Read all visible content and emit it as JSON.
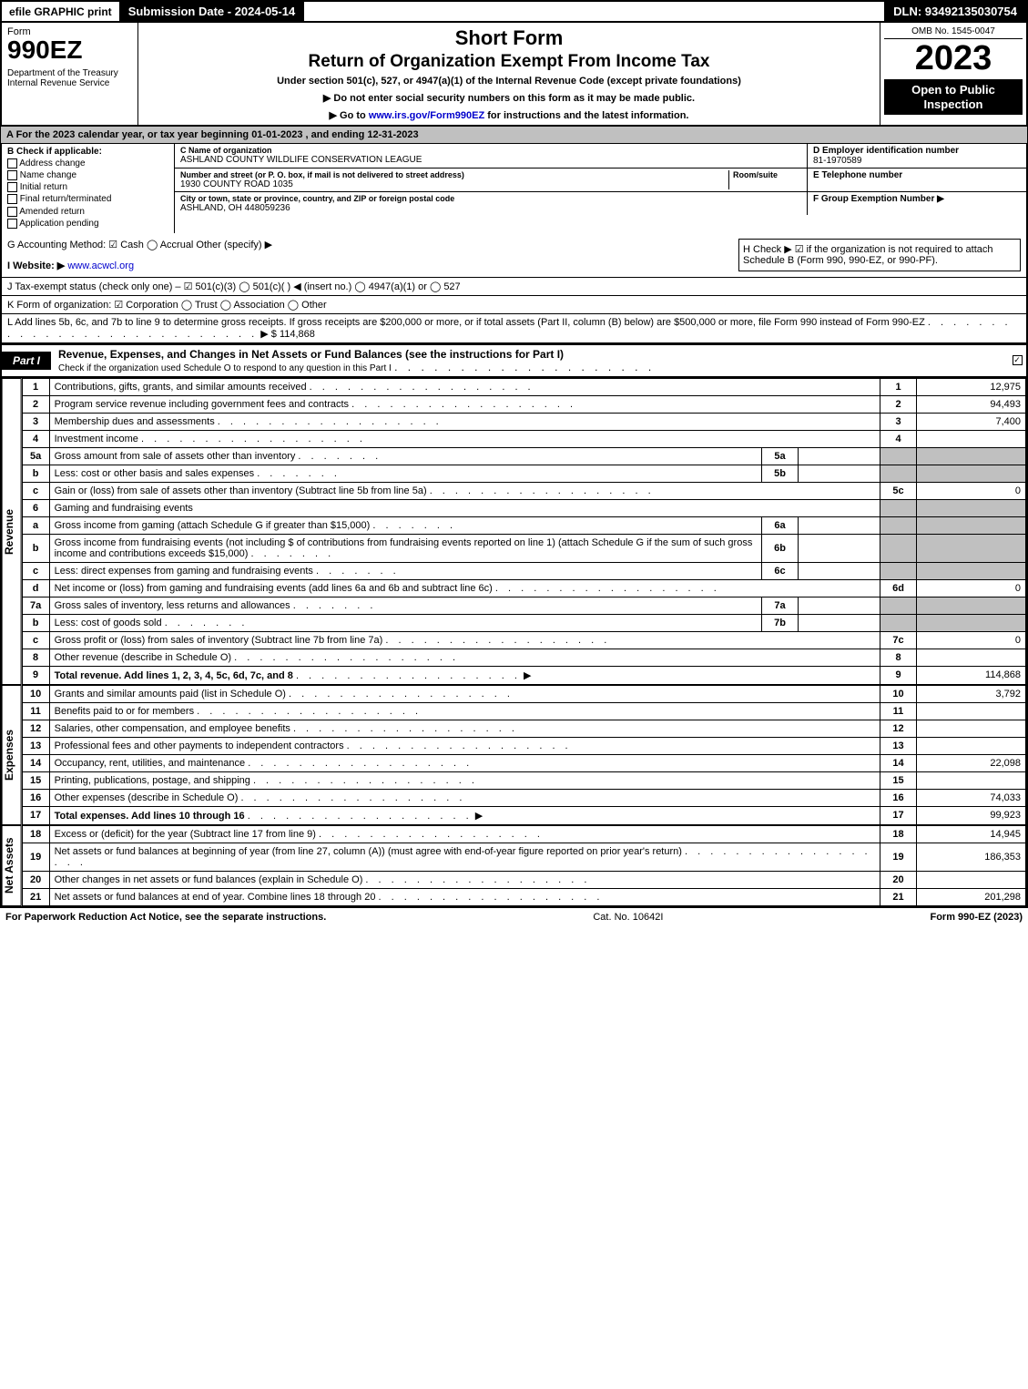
{
  "topbar": {
    "left": "efile GRAPHIC print",
    "center": "Submission Date - 2024-05-14",
    "right": "DLN: 93492135030754"
  },
  "header": {
    "form_label": "Form",
    "form_number": "990EZ",
    "dept": "Department of the Treasury\nInternal Revenue Service",
    "title1": "Short Form",
    "title2": "Return of Organization Exempt From Income Tax",
    "subtitle": "Under section 501(c), 527, or 4947(a)(1) of the Internal Revenue Code (except private foundations)",
    "note1": "▶ Do not enter social security numbers on this form as it may be made public.",
    "note2": "▶ Go to www.irs.gov/Form990EZ for instructions and the latest information.",
    "omb": "OMB No. 1545-0047",
    "year": "2023",
    "inspect": "Open to Public Inspection"
  },
  "line_a": "A  For the 2023 calendar year, or tax year beginning 01-01-2023 , and ending 12-31-2023",
  "box_b": {
    "title": "B  Check if applicable:",
    "items": [
      "Address change",
      "Name change",
      "Initial return",
      "Final return/terminated",
      "Amended return",
      "Application pending"
    ]
  },
  "box_c": {
    "name_lbl": "C Name of organization",
    "name": "ASHLAND COUNTY WILDLIFE CONSERVATION LEAGUE",
    "street_lbl": "Number and street (or P. O. box, if mail is not delivered to street address)",
    "room_lbl": "Room/suite",
    "street": "1930 COUNTY ROAD 1035",
    "city_lbl": "City or town, state or province, country, and ZIP or foreign postal code",
    "city": "ASHLAND, OH  448059236"
  },
  "box_d": {
    "lbl": "D Employer identification number",
    "val": "81-1970589"
  },
  "box_e": {
    "lbl": "E Telephone number",
    "val": ""
  },
  "box_f": {
    "lbl": "F Group Exemption Number  ▶",
    "val": ""
  },
  "line_g": "G Accounting Method:   ☑ Cash   ◯ Accrual   Other (specify) ▶",
  "line_h": "H  Check ▶ ☑ if the organization is not required to attach Schedule B (Form 990, 990-EZ, or 990-PF).",
  "line_i": "I Website: ▶ www.acwcl.org",
  "line_j": "J Tax-exempt status (check only one) – ☑ 501(c)(3) ◯ 501(c)(  ) ◀ (insert no.) ◯ 4947(a)(1) or ◯ 527",
  "line_k": "K Form of organization:  ☑ Corporation  ◯ Trust  ◯ Association  ◯ Other",
  "line_l": "L Add lines 5b, 6c, and 7b to line 9 to determine gross receipts. If gross receipts are $200,000 or more, or if total assets (Part II, column (B) below) are $500,000 or more, file Form 990 instead of Form 990-EZ",
  "line_l_amt": "▶ $ 114,868",
  "part1": {
    "tag": "Part I",
    "title": "Revenue, Expenses, and Changes in Net Assets or Fund Balances (see the instructions for Part I)",
    "check_line": "Check if the organization used Schedule O to respond to any question in this Part I"
  },
  "sections": {
    "revenue": "Revenue",
    "expenses": "Expenses",
    "netassets": "Net Assets"
  },
  "rows": [
    {
      "n": "1",
      "desc": "Contributions, gifts, grants, and similar amounts received",
      "r": "1",
      "amt": "12,975"
    },
    {
      "n": "2",
      "desc": "Program service revenue including government fees and contracts",
      "r": "2",
      "amt": "94,493"
    },
    {
      "n": "3",
      "desc": "Membership dues and assessments",
      "r": "3",
      "amt": "7,400"
    },
    {
      "n": "4",
      "desc": "Investment income",
      "r": "4",
      "amt": ""
    },
    {
      "n": "5a",
      "desc": "Gross amount from sale of assets other than inventory",
      "sub": "5a",
      "subval": "",
      "shade": true
    },
    {
      "n": "b",
      "desc": "Less: cost or other basis and sales expenses",
      "sub": "5b",
      "subval": "",
      "shade": true
    },
    {
      "n": "c",
      "desc": "Gain or (loss) from sale of assets other than inventory (Subtract line 5b from line 5a)",
      "r": "5c",
      "amt": "0"
    },
    {
      "n": "6",
      "desc": "Gaming and fundraising events",
      "header": true
    },
    {
      "n": "a",
      "desc": "Gross income from gaming (attach Schedule G if greater than $15,000)",
      "sub": "6a",
      "subval": "",
      "shade": true
    },
    {
      "n": "b",
      "desc": "Gross income from fundraising events (not including $                      of contributions from fundraising events reported on line 1) (attach Schedule G if the sum of such gross income and contributions exceeds $15,000)",
      "sub": "6b",
      "subval": "",
      "shade": true
    },
    {
      "n": "c",
      "desc": "Less: direct expenses from gaming and fundraising events",
      "sub": "6c",
      "subval": "",
      "shade": true
    },
    {
      "n": "d",
      "desc": "Net income or (loss) from gaming and fundraising events (add lines 6a and 6b and subtract line 6c)",
      "r": "6d",
      "amt": "0"
    },
    {
      "n": "7a",
      "desc": "Gross sales of inventory, less returns and allowances",
      "sub": "7a",
      "subval": "",
      "shade": true
    },
    {
      "n": "b",
      "desc": "Less: cost of goods sold",
      "sub": "7b",
      "subval": "",
      "shade": true
    },
    {
      "n": "c",
      "desc": "Gross profit or (loss) from sales of inventory (Subtract line 7b from line 7a)",
      "r": "7c",
      "amt": "0"
    },
    {
      "n": "8",
      "desc": "Other revenue (describe in Schedule O)",
      "r": "8",
      "amt": ""
    },
    {
      "n": "9",
      "desc": "Total revenue. Add lines 1, 2, 3, 4, 5c, 6d, 7c, and 8",
      "r": "9",
      "amt": "114,868",
      "bold": true,
      "arrow": true
    }
  ],
  "exp_rows": [
    {
      "n": "10",
      "desc": "Grants and similar amounts paid (list in Schedule O)",
      "r": "10",
      "amt": "3,792"
    },
    {
      "n": "11",
      "desc": "Benefits paid to or for members",
      "r": "11",
      "amt": ""
    },
    {
      "n": "12",
      "desc": "Salaries, other compensation, and employee benefits",
      "r": "12",
      "amt": ""
    },
    {
      "n": "13",
      "desc": "Professional fees and other payments to independent contractors",
      "r": "13",
      "amt": ""
    },
    {
      "n": "14",
      "desc": "Occupancy, rent, utilities, and maintenance",
      "r": "14",
      "amt": "22,098"
    },
    {
      "n": "15",
      "desc": "Printing, publications, postage, and shipping",
      "r": "15",
      "amt": ""
    },
    {
      "n": "16",
      "desc": "Other expenses (describe in Schedule O)",
      "r": "16",
      "amt": "74,033"
    },
    {
      "n": "17",
      "desc": "Total expenses. Add lines 10 through 16",
      "r": "17",
      "amt": "99,923",
      "bold": true,
      "arrow": true
    }
  ],
  "na_rows": [
    {
      "n": "18",
      "desc": "Excess or (deficit) for the year (Subtract line 17 from line 9)",
      "r": "18",
      "amt": "14,945"
    },
    {
      "n": "19",
      "desc": "Net assets or fund balances at beginning of year (from line 27, column (A)) (must agree with end-of-year figure reported on prior year's return)",
      "r": "19",
      "amt": "186,353"
    },
    {
      "n": "20",
      "desc": "Other changes in net assets or fund balances (explain in Schedule O)",
      "r": "20",
      "amt": ""
    },
    {
      "n": "21",
      "desc": "Net assets or fund balances at end of year. Combine lines 18 through 20",
      "r": "21",
      "amt": "201,298"
    }
  ],
  "footer": {
    "left": "For Paperwork Reduction Act Notice, see the separate instructions.",
    "center": "Cat. No. 10642I",
    "right": "Form 990-EZ (2023)"
  }
}
